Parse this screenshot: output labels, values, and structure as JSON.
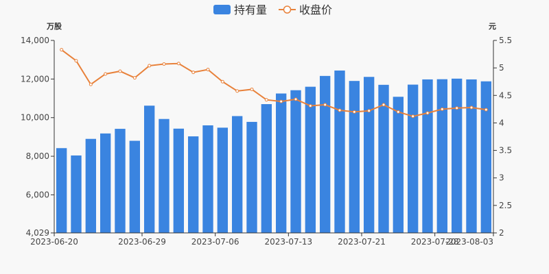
{
  "legend": {
    "bar_label": "持有量",
    "line_label": "收盘价"
  },
  "units": {
    "left": "万股",
    "right": "元"
  },
  "colors": {
    "bar": "#3a84e0",
    "line": "#e8813a",
    "axis": "#333333",
    "background": "#f8f8f8"
  },
  "chart_data": {
    "type": "bar",
    "x_tick_labels": [
      "2023-06-20",
      "2023-06-29",
      "2023-07-06",
      "2023-07-13",
      "2023-07-21",
      "2023-07-28",
      "2023-08-03"
    ],
    "x_tick_indices": [
      0,
      6,
      11,
      16,
      21,
      26,
      30
    ],
    "left_axis": {
      "ylim": [
        4029,
        14000
      ],
      "tick_values": [
        4029,
        6000,
        8000,
        10000,
        12000,
        14000
      ],
      "tick_labels": [
        "4,029",
        "6,000",
        "8,000",
        "10,000",
        "12,000",
        "14,000"
      ]
    },
    "right_axis": {
      "ylim": [
        2,
        5.5
      ],
      "tick_values": [
        2,
        2.5,
        3,
        3.5,
        4,
        4.5,
        5,
        5.5
      ],
      "tick_labels": [
        "2",
        "2.5",
        "3",
        "3.5",
        "4",
        "4.5",
        "5",
        "5.5"
      ]
    },
    "series": [
      {
        "name": "持有量",
        "type": "bar",
        "axis": "left",
        "values": [
          8420,
          8040,
          8900,
          9180,
          9420,
          8800,
          10620,
          9930,
          9430,
          9030,
          9600,
          9480,
          10080,
          9780,
          10700,
          11250,
          11420,
          11600,
          12160,
          12440,
          11900,
          12110,
          11700,
          11080,
          11710,
          11980,
          11990,
          12020,
          11980,
          11880
        ]
      },
      {
        "name": "收盘价",
        "type": "line",
        "axis": "right",
        "values": [
          5.33,
          5.13,
          4.7,
          4.89,
          4.94,
          4.82,
          5.04,
          5.07,
          5.08,
          4.92,
          4.97,
          4.75,
          4.58,
          4.61,
          4.42,
          4.39,
          4.43,
          4.31,
          4.33,
          4.23,
          4.2,
          4.22,
          4.33,
          4.2,
          4.12,
          4.18,
          4.25,
          4.27,
          4.28,
          4.24
        ]
      }
    ]
  }
}
